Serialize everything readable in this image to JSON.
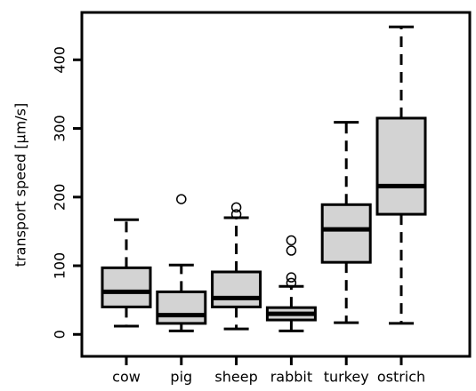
{
  "chart_data": {
    "type": "boxplot",
    "ylabel": "transport speed [µm/s]",
    "categories": [
      "cow",
      "pig",
      "sheep",
      "rabbit",
      "turkey",
      "ostrich"
    ],
    "whisker_low": [
      12,
      5,
      8,
      5,
      17,
      16
    ],
    "q1": [
      40,
      16,
      40,
      21,
      105,
      175
    ],
    "median": [
      62,
      28,
      53,
      30,
      153,
      216
    ],
    "q3": [
      97,
      62,
      91,
      39,
      189,
      315
    ],
    "whisker_high": [
      167,
      101,
      170,
      70,
      309,
      448
    ],
    "outliers": [
      [],
      [
        197
      ],
      [
        185,
        175
      ],
      [
        137,
        122,
        83,
        75
      ],
      [],
      []
    ],
    "color": "#d3d3d3",
    "ylim": [
      -32,
      469
    ],
    "yticks": [
      0,
      100,
      200,
      300,
      400
    ]
  }
}
